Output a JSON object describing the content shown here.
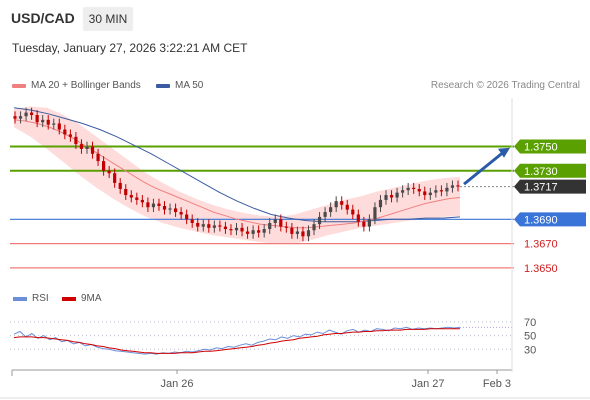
{
  "header": {
    "symbol": "USD/CAD",
    "timeframe": "30 MIN",
    "datetime": "Tuesday, January 27, 2026 3:22:21 AM CET",
    "credit": "Research © 2026 Trading Central"
  },
  "legend": {
    "ma20": "MA 20 + Bollinger Bands",
    "ma50": "MA 50",
    "rsi": "RSI",
    "nine_ma": "9MA"
  },
  "colors": {
    "ma20": "#f08080",
    "ma50": "#3a5ba0",
    "band_fill": "#ffd6d6",
    "resistance": "#5aa000",
    "pivot": "#3a74d8",
    "support": "#f07a7a",
    "last": "#333333",
    "candle_up": "#4a4a4a",
    "candle_down": "#c00000",
    "arrow": "#2a5ba8",
    "rsi": "#6a8fd8",
    "rsi_ma": "#d00000"
  },
  "chart_data": {
    "type": "candlestick",
    "symbol": "USD/CAD",
    "interval": "30 MIN",
    "ylim": [
      1.364,
      1.379
    ],
    "x_tick_labels": [
      "Jan 26",
      "Jan 27",
      "Feb 3"
    ],
    "levels": [
      {
        "label": "1.3750",
        "value": 1.375,
        "kind": "resistance"
      },
      {
        "label": "1.3730",
        "value": 1.373,
        "kind": "resistance"
      },
      {
        "label": "1.3717",
        "value": 1.3717,
        "kind": "last"
      },
      {
        "label": "1.3690",
        "value": 1.369,
        "kind": "pivot"
      },
      {
        "label": "1.3670",
        "value": 1.367,
        "kind": "support"
      },
      {
        "label": "1.3650",
        "value": 1.365,
        "kind": "support"
      }
    ],
    "candles_close": [
      1.3773,
      1.3775,
      1.3778,
      1.3776,
      1.377,
      1.3772,
      1.3768,
      1.3769,
      1.3764,
      1.376,
      1.3758,
      1.3752,
      1.3748,
      1.375,
      1.3744,
      1.3738,
      1.373,
      1.3728,
      1.372,
      1.3715,
      1.371,
      1.3708,
      1.3706,
      1.3704,
      1.37,
      1.3703,
      1.3701,
      1.3698,
      1.3699,
      1.3696,
      1.3694,
      1.369,
      1.3687,
      1.3684,
      1.3686,
      1.3683,
      1.3685,
      1.3684,
      1.3682,
      1.3681,
      1.3683,
      1.368,
      1.3678,
      1.3681,
      1.3679,
      1.3682,
      1.3687,
      1.369,
      1.3684,
      1.3683,
      1.3678,
      1.368,
      1.3676,
      1.3681,
      1.3686,
      1.3692,
      1.3696,
      1.37,
      1.3705,
      1.3702,
      1.3698,
      1.3694,
      1.3688,
      1.3684,
      1.369,
      1.37,
      1.3706,
      1.371,
      1.3708,
      1.3712,
      1.3714,
      1.3716,
      1.3715,
      1.3713,
      1.371,
      1.3712,
      1.3714,
      1.3713,
      1.3716,
      1.3718,
      1.3717
    ],
    "ma20": [
      1.3772,
      1.3771,
      1.3769,
      1.3766,
      1.3762,
      1.3757,
      1.3751,
      1.3745,
      1.3739,
      1.3733,
      1.3727,
      1.3721,
      1.3716,
      1.3712,
      1.3708,
      1.3704,
      1.37,
      1.3696,
      1.3693,
      1.369,
      1.3688,
      1.3686,
      1.3685,
      1.3684,
      1.3683,
      1.3683,
      1.3684,
      1.3685,
      1.3686,
      1.3687,
      1.3689,
      1.3691,
      1.3694,
      1.3697,
      1.37,
      1.3703,
      1.3705,
      1.3707,
      1.3708
    ],
    "ma50": [
      1.3782,
      1.378,
      1.3777,
      1.3773,
      1.3769,
      1.3764,
      1.3758,
      1.3751,
      1.3744,
      1.3736,
      1.3728,
      1.372,
      1.3712,
      1.3705,
      1.3699,
      1.3694,
      1.3691,
      1.3689,
      1.3688,
      1.3688,
      1.3688,
      1.3689,
      1.369,
      1.369,
      1.3691,
      1.3691,
      1.3692
    ],
    "bb_upper": [
      1.3781,
      1.3783,
      1.3782,
      1.3776,
      1.3768,
      1.3758,
      1.3748,
      1.3738,
      1.3728,
      1.372,
      1.3713,
      1.3707,
      1.3702,
      1.3698,
      1.3695,
      1.3693,
      1.3692,
      1.3694,
      1.3698,
      1.3702,
      1.3706,
      1.3709,
      1.3713,
      1.3716,
      1.3719,
      1.3722,
      1.3724,
      1.3725
    ],
    "bb_lower": [
      1.3766,
      1.3758,
      1.3748,
      1.3737,
      1.3726,
      1.3716,
      1.3707,
      1.3699,
      1.3692,
      1.3687,
      1.3683,
      1.368,
      1.3677,
      1.3675,
      1.3673,
      1.3671,
      1.367,
      1.367,
      1.3673,
      1.3677,
      1.368,
      1.3683,
      1.3685,
      1.3687,
      1.3689,
      1.369,
      1.3692,
      1.3693
    ],
    "forecast_arrow": {
      "from": 1.3719,
      "to": 1.3749
    },
    "rsi": {
      "ylim": [
        10,
        80
      ],
      "y_tick_labels": [
        "70",
        "50",
        "30"
      ],
      "y_ticks": [
        70,
        50,
        30
      ],
      "rsi_values": [
        52,
        56,
        48,
        53,
        46,
        50,
        44,
        47,
        41,
        43,
        38,
        40,
        35,
        37,
        33,
        31,
        30,
        28,
        27,
        26,
        25,
        24,
        23,
        24,
        23,
        25,
        24,
        26,
        25,
        27,
        26,
        28,
        30,
        29,
        32,
        31,
        34,
        33,
        36,
        38,
        36,
        40,
        42,
        45,
        44,
        48,
        46,
        50,
        48,
        52,
        51,
        55,
        53,
        58,
        55,
        52,
        57,
        59,
        55,
        58,
        56,
        60,
        59,
        57,
        61,
        60,
        62,
        59,
        61,
        60,
        61,
        60,
        61,
        62,
        61,
        62
      ],
      "ma_values": [
        47,
        48,
        48,
        48,
        47,
        47,
        46,
        45,
        44,
        43,
        41,
        40,
        38,
        37,
        35,
        34,
        32,
        31,
        29,
        28,
        27,
        26,
        25,
        25,
        24,
        24,
        24,
        24,
        25,
        25,
        25,
        26,
        27,
        27,
        28,
        29,
        30,
        31,
        32,
        33,
        34,
        36,
        37,
        39,
        40,
        42,
        43,
        44,
        46,
        47,
        48,
        49,
        51,
        52,
        53,
        53,
        54,
        55,
        55,
        56,
        56,
        57,
        57,
        58,
        58,
        58,
        59,
        59,
        59,
        59,
        60,
        60,
        60,
        60,
        60,
        60
      ]
    }
  }
}
